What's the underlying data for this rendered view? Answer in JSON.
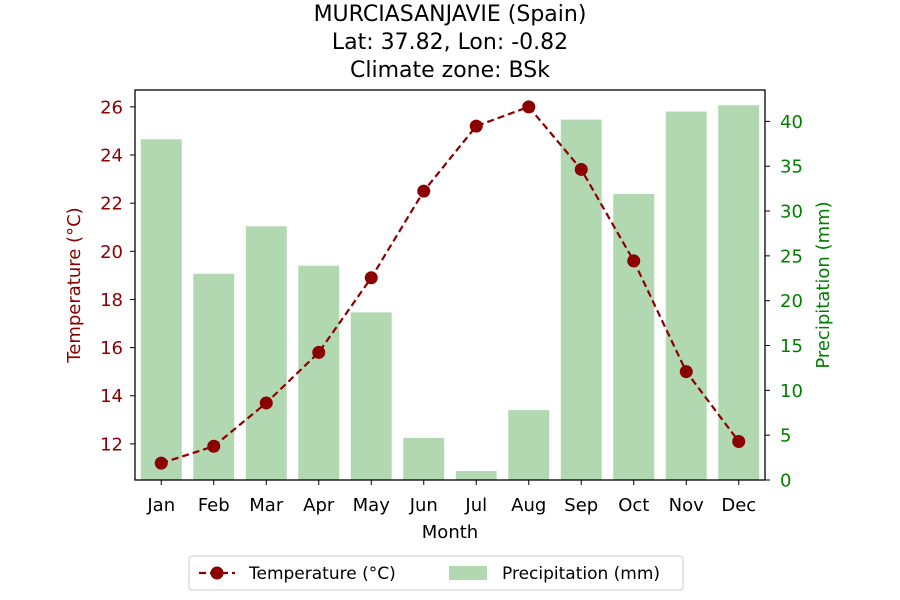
{
  "chart_data": {
    "type": "bar+line",
    "title_lines": [
      "MURCIASANJAVIE (Spain)",
      "Lat: 37.82, Lon: -0.82",
      "Climate zone: BSk"
    ],
    "categories": [
      "Jan",
      "Feb",
      "Mar",
      "Apr",
      "May",
      "Jun",
      "Jul",
      "Aug",
      "Sep",
      "Oct",
      "Nov",
      "Dec"
    ],
    "xlabel": "Month",
    "y_left": {
      "label": "Temperature (°C)",
      "ylim": [
        10.5,
        26.7
      ],
      "ticks": [
        12,
        14,
        16,
        18,
        20,
        22,
        24,
        26
      ],
      "color": "#8b0000"
    },
    "y_right": {
      "label": "Precipitation (mm)",
      "ylim": [
        0,
        43.5
      ],
      "ticks": [
        0,
        5,
        10,
        15,
        20,
        25,
        30,
        35,
        40
      ],
      "color": "#008000"
    },
    "series": [
      {
        "name": "Temperature (°C)",
        "type": "line",
        "axis": "left",
        "color": "#8b0000",
        "line_style": "dashed",
        "marker": "circle",
        "values": [
          11.2,
          11.9,
          13.7,
          15.8,
          18.9,
          22.5,
          25.2,
          26.0,
          23.4,
          19.6,
          15.0,
          12.1
        ]
      },
      {
        "name": "Precipitation (mm)",
        "type": "bar",
        "axis": "right",
        "color": "#b2d8b2",
        "values": [
          38,
          23,
          28.3,
          23.9,
          18.7,
          4.7,
          1.0,
          7.8,
          40.2,
          31.9,
          41.1,
          41.8
        ]
      }
    ],
    "legend": {
      "placement": "bottom-center",
      "entries": [
        "Temperature (°C)",
        "Precipitation (mm)"
      ]
    },
    "grid": false
  }
}
